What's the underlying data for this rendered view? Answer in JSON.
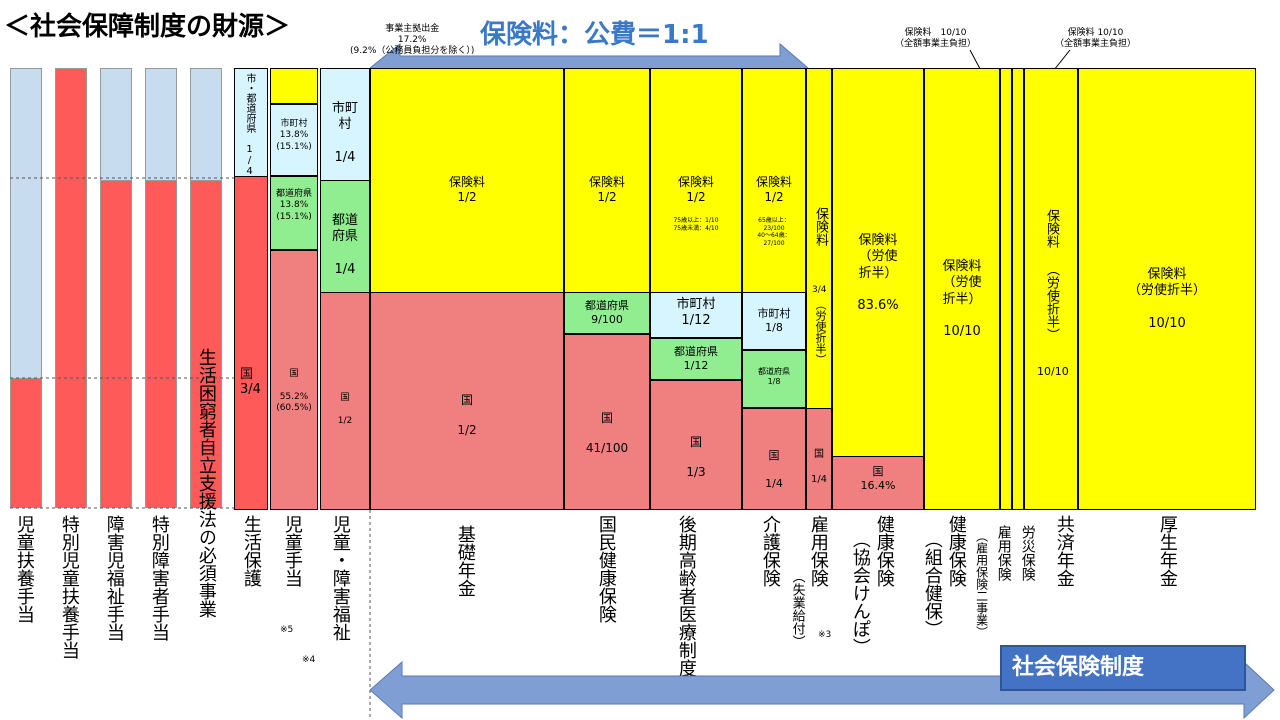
{
  "title": "＜社会保障制度の財源＞",
  "top_banner": "保険料：公費＝1:1",
  "bottom_banner": "社会保険制度",
  "note_employer": "事業主拠出金\n17.2%\n(9.2%（公務員負担分を除く）)",
  "note_rousai": "保険料　10/10\n（全額事業主負担）",
  "note_kyosai": "保険料 10/10\n（全額事業主負担）",
  "left_columns": [
    {
      "label": "児童扶養手当"
    },
    {
      "label": "特別児童扶養手当"
    },
    {
      "label": "障害児福祉手当"
    },
    {
      "label": "特別障害者手当"
    },
    {
      "label": "生活困窮者自立支援法の必須事業"
    }
  ],
  "seikatsu": {
    "top": "市・都道府県 1/4",
    "kuni": "国\n3/4",
    "label": "生活保護"
  },
  "jido": {
    "city": "市町村\n13.8%\n(15.1%)",
    "pref": "都道府県\n13.8%\n(15.1%)",
    "kuni": "国\n\n55.2%\n(60.5%)",
    "label": "児童手当",
    "note": "※5"
  },
  "shogai": {
    "city": "市町\n村\n\n1/4",
    "pref": "都道\n府県\n\n1/4",
    "kuni": "国\n\n1/2",
    "label": "児童・障害福祉",
    "note": "※4"
  },
  "kiso": {
    "hoken": "保険料\n1/2",
    "kuni": "国\n\n1/2",
    "label": "基礎年金"
  },
  "kokumin": {
    "hoken": "保険料\n1/2",
    "pref": "都道府県\n9/100",
    "kuni": "国\n\n41/100",
    "label": "国民健康保険"
  },
  "koki": {
    "hoken": "保険料\n1/2",
    "sub": "75歳以上：1/10\n75歳未満：4/10",
    "city": "市町村\n1/12",
    "pref": "都道府県\n1/12",
    "kuni": "国\n\n1/3",
    "label": "後期高齢者医療制度"
  },
  "kaigo": {
    "hoken": "保険料\n1/2",
    "sub": "65歳以上：\n23/100\n40～64歳：\n27/100",
    "city": "市町村\n1/8",
    "pref": "都道府県\n1/8",
    "kuni": "国\n\n1/4",
    "label": "介護保険"
  },
  "koyo": {
    "hoken": "保険料",
    "ratio": "3/4",
    "roshi": "（労使折半）",
    "kuni": "国\n\n1/4",
    "label": "雇用保険",
    "sub": "（失業給付）",
    "note": "※3"
  },
  "kyokai": {
    "hoken": "保険料\n（労使\n折半）\n\n83.6%",
    "kuni": "国\n16.4%",
    "label": "健康保険",
    "sub": "（協会けんぽ）"
  },
  "kumiai": {
    "hoken": "保険料\n（労使\n折半）\n\n10/10",
    "label": "健康保険",
    "sub": "（組合健保）"
  },
  "koyo2": {
    "label": "雇用保険",
    "sub": "（雇用保険二事業）"
  },
  "rousai": {
    "label": "労災保険"
  },
  "kyosai": {
    "hoken": "保険料",
    "roshi": "（労使折半）",
    "ratio": "10/10",
    "label": "共済年金"
  },
  "kosei": {
    "hoken": "保険料\n（労使折半）\n\n10/10",
    "label": "厚生年金"
  }
}
